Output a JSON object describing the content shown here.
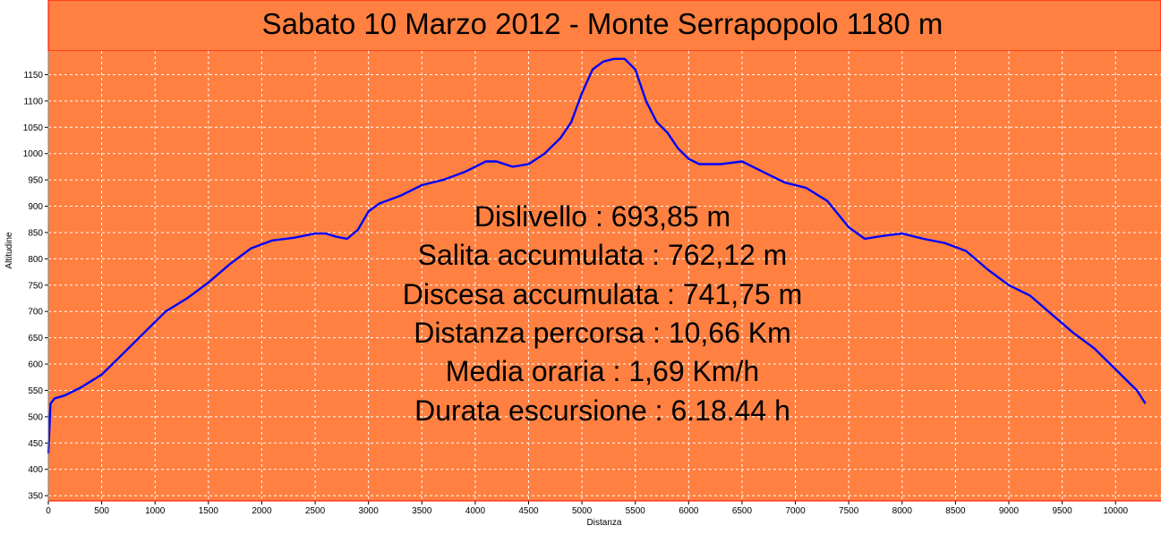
{
  "chart_data": {
    "type": "line",
    "title": "Sabato 10 Marzo 2012 - Monte Serrapopolo 1180 m",
    "xlabel": "Distanza",
    "ylabel": "Altitudine",
    "xlim": [
      0,
      10300
    ],
    "ylim": [
      340,
      1195
    ],
    "x_ticks": [
      0,
      500,
      1000,
      1500,
      2000,
      2500,
      3000,
      3500,
      4000,
      4500,
      5000,
      5500,
      6000,
      6500,
      7000,
      7500,
      8000,
      8500,
      9000,
      9500,
      10000
    ],
    "y_ticks": [
      350,
      400,
      450,
      500,
      550,
      600,
      650,
      700,
      750,
      800,
      850,
      900,
      950,
      1000,
      1050,
      1100,
      1150
    ],
    "grid": true,
    "colors": {
      "background": "#ff8040",
      "line": "#0000ff",
      "grid": "#ffffff",
      "border": "#ff0000"
    },
    "series": [
      {
        "x": [
          0,
          20,
          60,
          150,
          300,
          500,
          700,
          900,
          1100,
          1300,
          1500,
          1700,
          1900,
          2100,
          2300,
          2500,
          2600,
          2700,
          2800,
          2900,
          3000,
          3100,
          3300,
          3500,
          3700,
          3900,
          4100,
          4200,
          4350,
          4500,
          4650,
          4800,
          4900,
          5000,
          5100,
          5200,
          5300,
          5400,
          5500,
          5600,
          5700,
          5800,
          5900,
          6000,
          6100,
          6300,
          6500,
          6700,
          6900,
          7100,
          7300,
          7500,
          7650,
          7800,
          8000,
          8200,
          8400,
          8600,
          8800,
          9000,
          9200,
          9400,
          9600,
          9800,
          10000,
          10200,
          10280
        ],
        "y": [
          430,
          525,
          535,
          540,
          555,
          580,
          620,
          660,
          700,
          725,
          755,
          790,
          820,
          835,
          840,
          848,
          848,
          842,
          838,
          855,
          890,
          905,
          920,
          940,
          950,
          965,
          985,
          985,
          975,
          980,
          1000,
          1030,
          1060,
          1115,
          1160,
          1175,
          1180,
          1180,
          1160,
          1100,
          1060,
          1040,
          1010,
          990,
          980,
          980,
          985,
          965,
          945,
          935,
          910,
          860,
          838,
          843,
          848,
          838,
          830,
          815,
          780,
          750,
          730,
          695,
          660,
          630,
          590,
          550,
          525
        ]
      }
    ]
  },
  "stats": [
    "Dislivello : 693,85 m",
    "Salita accumulata : 762,12 m",
    "Discesa accumulata : 741,75 m",
    "Distanza percorsa : 10,66 Km",
    "Media oraria : 1,69 Km/h",
    "Durata escursione : 6.18.44 h"
  ]
}
